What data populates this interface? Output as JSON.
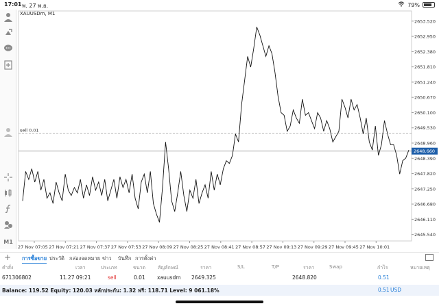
{
  "status": {
    "time": "17:01",
    "date": "พ. 27 พ.ย.",
    "battery": "79%"
  },
  "symbol": "XAUUSDm, M1",
  "sell_label": "sell 0.01",
  "current_price": "2648.660",
  "price_ticks": [
    "2653.520",
    "2652.950",
    "2652.380",
    "2651.810",
    "2651.240",
    "2650.670",
    "2650.100",
    "2649.530",
    "2648.960",
    "2648.390",
    "2647.820",
    "2647.250",
    "2646.680",
    "2646.110",
    "2645.540"
  ],
  "time_ticks": [
    "27 Nov 07:05",
    "27 Nov 07:21",
    "27 Nov 07:37",
    "27 Nov 07:53",
    "27 Nov 08:09",
    "27 Nov 08:25",
    "27 Nov 08:41",
    "27 Nov 08:57",
    "27 Nov 09:13",
    "27 Nov 09:29",
    "27 Nov 09:45",
    "27 Nov 10:01"
  ],
  "tabs": [
    "การซื้อขาย",
    "ประวัติ",
    "กล่องจดหมาย",
    "ข่าว",
    "บันทึก",
    "การตั้งค่า"
  ],
  "table": {
    "headers": [
      "คำสั่ง",
      "เวลา",
      "ประเภท",
      "ขนาด",
      "สัญลักษณ์",
      "ราคา",
      "S/L",
      "T/P",
      "ราคา",
      "Swap",
      "กำไร",
      "หมายเหตุ"
    ],
    "row": {
      "order": "671306802",
      "time": "11.27 09:21",
      "type": "sell",
      "size": "0.01",
      "symbol": "xauusdm",
      "open_price": "2649.325",
      "current_price": "2648.820",
      "profit": "0.51"
    }
  },
  "balance": {
    "text": "Balance: 119.52 Equity: 120.03 หลักประกัน: 1.32 ฟรี: 118.71 Level: 9 061.18%",
    "value": "0.51",
    "currency": "USD"
  },
  "chart_data": {
    "type": "line",
    "symbol": "XAUUSDm",
    "timeframe": "M1",
    "ylim": [
      2645.3,
      2653.9
    ],
    "current_price": 2648.66,
    "order_line": {
      "label": "sell 0.01",
      "price": 2649.325
    },
    "x_ticks": [
      "27 Nov 07:05",
      "27 Nov 07:21",
      "27 Nov 07:37",
      "27 Nov 07:53",
      "27 Nov 08:09",
      "27 Nov 08:25",
      "27 Nov 08:41",
      "27 Nov 08:57",
      "27 Nov 09:13",
      "27 Nov 09:29",
      "27 Nov 09:45",
      "27 Nov 10:01"
    ],
    "series": [
      {
        "values": [
          2646.8,
          2647.9,
          2647.6,
          2648.0,
          2647.5,
          2647.9,
          2647.2,
          2647.6,
          2646.9,
          2647.1,
          2646.7,
          2647.5,
          2647.1,
          2646.8,
          2647.8,
          2647.2,
          2647.0,
          2647.3,
          2647.1,
          2647.6,
          2646.9,
          2647.4,
          2647.0,
          2647.7,
          2647.2,
          2647.5,
          2647.0,
          2647.6,
          2646.8,
          2647.2,
          2647.6,
          2646.9,
          2647.7,
          2647.3,
          2647.6,
          2647.1,
          2647.8,
          2646.9,
          2646.5,
          2647.5,
          2647.8,
          2647.1,
          2647.9,
          2646.7,
          2646.3,
          2646.0,
          2647.3,
          2649.0,
          2648.0,
          2646.8,
          2646.4,
          2647.1,
          2647.9,
          2647.0,
          2646.4,
          2647.2,
          2646.9,
          2647.6,
          2646.7,
          2647.1,
          2647.4,
          2646.9,
          2647.9,
          2647.2,
          2647.8,
          2647.4,
          2648.0,
          2648.3,
          2648.2,
          2648.5,
          2649.3,
          2649.0,
          2650.4,
          2651.3,
          2652.2,
          2651.8,
          2652.5,
          2653.3,
          2653.0,
          2652.6,
          2652.2,
          2652.6,
          2652.3,
          2651.6,
          2650.7,
          2650.1,
          2650.0,
          2649.4,
          2649.6,
          2650.2,
          2649.9,
          2649.7,
          2650.6,
          2650.0,
          2650.1,
          2649.8,
          2649.5,
          2650.1,
          2649.9,
          2649.4,
          2649.8,
          2649.5,
          2649.0,
          2649.2,
          2649.4,
          2650.6,
          2650.3,
          2649.9,
          2650.6,
          2650.2,
          2650.4,
          2649.9,
          2649.3,
          2649.9,
          2649.0,
          2648.7,
          2649.6,
          2648.5,
          2648.9,
          2649.8,
          2649.3,
          2648.9,
          2648.9,
          2648.5,
          2647.8,
          2648.3,
          2648.4,
          2648.7
        ]
      }
    ]
  }
}
